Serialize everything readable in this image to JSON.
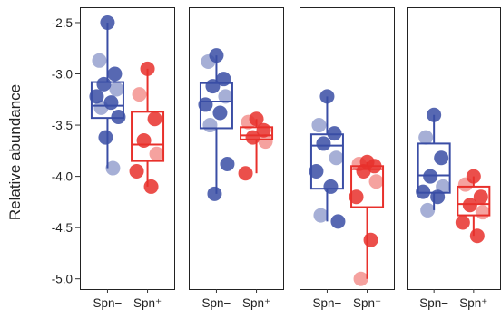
{
  "chart_data": {
    "type": "box",
    "ylabel": "Relative abundance",
    "ylim": [
      -5.1,
      -2.35
    ],
    "yticks": [
      -2.5,
      -3.0,
      -3.5,
      -4.0,
      -4.5,
      -5.0
    ],
    "ytick_labels": [
      "-2.5",
      "-3.0",
      "-3.5",
      "-4.0",
      "-4.5",
      "-5.0"
    ],
    "grid": false,
    "legend": "none",
    "categories": [
      "Spn−",
      "Spn⁺"
    ],
    "category_colors": [
      "#3A4DA5",
      "#E8302B"
    ],
    "panels": [
      {
        "groups": [
          {
            "category": "Spn−",
            "q1": -3.43,
            "median": -3.31,
            "q3": -3.08,
            "whisker_low": -3.92,
            "whisker_high": -2.5,
            "points": [
              -2.5,
              -2.87,
              -3.0,
              -3.1,
              -3.15,
              -3.22,
              -3.28,
              -3.33,
              -3.42,
              -3.62,
              -3.92
            ]
          },
          {
            "category": "Spn⁺",
            "q1": -3.85,
            "median": -3.69,
            "q3": -3.37,
            "whisker_low": -4.1,
            "whisker_high": -2.95,
            "points": [
              -2.95,
              -3.2,
              -3.44,
              -3.65,
              -3.78,
              -3.95,
              -4.1
            ]
          }
        ]
      },
      {
        "groups": [
          {
            "category": "Spn−",
            "q1": -3.53,
            "median": -3.27,
            "q3": -3.09,
            "whisker_low": -4.17,
            "whisker_high": -2.82,
            "points": [
              -2.82,
              -2.88,
              -3.05,
              -3.12,
              -3.22,
              -3.3,
              -3.38,
              -3.5,
              -3.88,
              -4.17
            ]
          },
          {
            "category": "Spn⁺",
            "q1": -3.64,
            "median": -3.6,
            "q3": -3.52,
            "whisker_low": -3.97,
            "whisker_high": -3.44,
            "points": [
              -3.44,
              -3.47,
              -3.55,
              -3.62,
              -3.66,
              -3.97
            ]
          }
        ]
      },
      {
        "groups": [
          {
            "category": "Spn−",
            "q1": -4.12,
            "median": -3.7,
            "q3": -3.59,
            "whisker_low": -4.44,
            "whisker_high": -3.22,
            "points": [
              -3.22,
              -3.5,
              -3.58,
              -3.68,
              -3.82,
              -3.95,
              -4.1,
              -4.38,
              -4.44
            ]
          },
          {
            "category": "Spn⁺",
            "q1": -4.3,
            "median": -3.93,
            "q3": -3.9,
            "whisker_low": -5.0,
            "whisker_high": -3.86,
            "points": [
              -3.86,
              -3.88,
              -3.9,
              -3.95,
              -4.05,
              -4.2,
              -4.62,
              -5.0
            ]
          }
        ]
      },
      {
        "groups": [
          {
            "category": "Spn−",
            "q1": -4.16,
            "median": -3.99,
            "q3": -3.68,
            "whisker_low": -4.33,
            "whisker_high": -3.4,
            "points": [
              -3.4,
              -3.62,
              -3.82,
              -4.0,
              -4.1,
              -4.15,
              -4.2,
              -4.33
            ]
          },
          {
            "category": "Spn⁺",
            "q1": -4.38,
            "median": -4.27,
            "q3": -4.1,
            "whisker_low": -4.58,
            "whisker_high": -4.0,
            "points": [
              -4.0,
              -4.08,
              -4.2,
              -4.28,
              -4.35,
              -4.45,
              -4.58
            ]
          }
        ]
      }
    ]
  }
}
